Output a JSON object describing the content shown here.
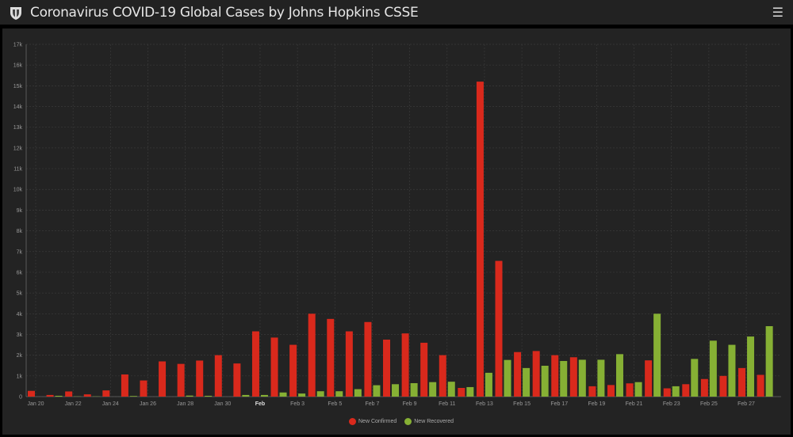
{
  "header": {
    "title": "Coronavirus COVID-19 Global Cases by Johns Hopkins CSSE",
    "menu_icon": "hamburger-menu-icon",
    "logo": "jhu-shield-logo"
  },
  "chart_data": {
    "type": "bar",
    "title": "",
    "xlabel": "",
    "ylabel": "",
    "ylim": [
      0,
      17000
    ],
    "yticks": [
      "0",
      "1k",
      "2k",
      "3k",
      "4k",
      "5k",
      "6k",
      "7k",
      "8k",
      "9k",
      "10k",
      "11k",
      "12k",
      "13k",
      "14k",
      "15k",
      "16k",
      "17k"
    ],
    "grid": true,
    "legend_position": "bottom-center",
    "categories": [
      "Jan 20",
      "Jan 21",
      "Jan 22",
      "Jan 23",
      "Jan 24",
      "Jan 25",
      "Jan 26",
      "Jan 27",
      "Jan 28",
      "Jan 29",
      "Jan 30",
      "Jan 31",
      "Feb",
      "Feb 2",
      "Feb 3",
      "Feb 4",
      "Feb 5",
      "Feb 6",
      "Feb 7",
      "Feb 8",
      "Feb 9",
      "Feb 10",
      "Feb 11",
      "Feb 12",
      "Feb 13",
      "Feb 14",
      "Feb 15",
      "Feb 16",
      "Feb 17",
      "Feb 18",
      "Feb 19",
      "Feb 20",
      "Feb 21",
      "Feb 22",
      "Feb 23",
      "Feb 24",
      "Feb 25",
      "Feb 26",
      "Feb 27",
      "Feb 28"
    ],
    "xtick_labels": [
      "Jan 20",
      "Jan 22",
      "Jan 24",
      "Jan 26",
      "Jan 28",
      "Jan 30",
      "Feb",
      "Feb 3",
      "Feb 5",
      "Feb 7",
      "Feb 9",
      "Feb 11",
      "Feb 13",
      "Feb 15",
      "Feb 17",
      "Feb 19",
      "Feb 21",
      "Feb 23",
      "Feb 25",
      "Feb 27"
    ],
    "series": [
      {
        "name": "New Confirmed",
        "color": "#d9291c",
        "values": [
          278,
          80,
          250,
          110,
          300,
          1070,
          780,
          1700,
          1580,
          1740,
          2000,
          1600,
          3150,
          2850,
          2500,
          4000,
          3750,
          3150,
          3600,
          2750,
          3050,
          2600,
          2000,
          420,
          15200,
          6550,
          2150,
          2200,
          2000,
          1900,
          500,
          560,
          640,
          1750,
          400,
          600,
          850,
          1000,
          1380,
          1050
        ]
      },
      {
        "name": "New Recovered",
        "color": "#86b034",
        "values": [
          0,
          40,
          10,
          10,
          0,
          30,
          0,
          0,
          50,
          40,
          0,
          80,
          80,
          200,
          150,
          260,
          260,
          360,
          550,
          600,
          650,
          700,
          720,
          460,
          1150,
          1770,
          1380,
          1490,
          1720,
          1780,
          1780,
          2050,
          700,
          4000,
          500,
          1820,
          2700,
          2500,
          2900,
          3400
        ]
      }
    ]
  }
}
